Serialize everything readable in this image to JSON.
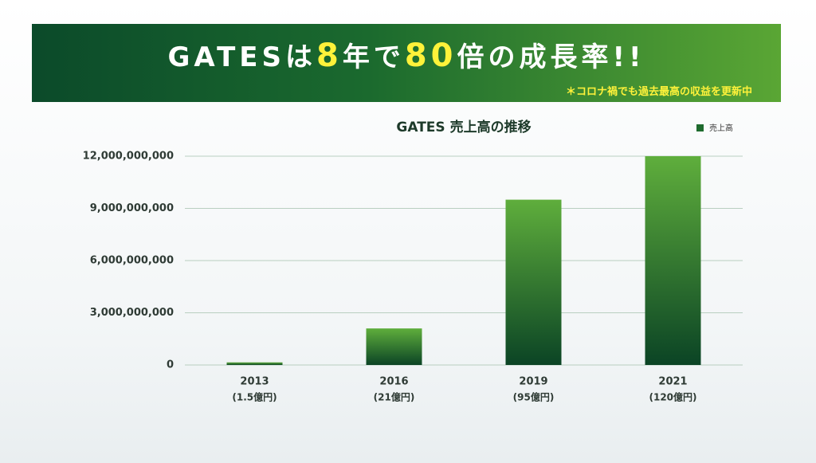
{
  "banner": {
    "title": [
      "GATESは",
      "8",
      "年で",
      "80",
      "倍の成長率!!"
    ],
    "note": "＊コロナ禍でも過去最高の収益を更新中"
  },
  "chart_data": {
    "type": "bar",
    "title": "GATES 売上高の推移",
    "categories": [
      "2013",
      "2016",
      "2019",
      "2021"
    ],
    "category_notes": [
      "(1.5億円)",
      "(21億円)",
      "(95億円)",
      "(120億円)"
    ],
    "series": [
      {
        "name": "売上高",
        "color": "#1e6b2e",
        "values": [
          150000000,
          2100000000,
          9500000000,
          12000000000
        ]
      }
    ],
    "ylim": [
      0,
      12000000000
    ],
    "yticks": [
      0,
      {
        "value": 3000000000,
        "label": "3,000,000,000"
      },
      {
        "value": 6000000000,
        "label": "6,000,000,000"
      },
      {
        "value": 9000000000,
        "label": "9,000,000,000"
      },
      {
        "value": 12000000000,
        "label": "12,000,000,000"
      }
    ],
    "grid": true,
    "legend": "top-right"
  }
}
